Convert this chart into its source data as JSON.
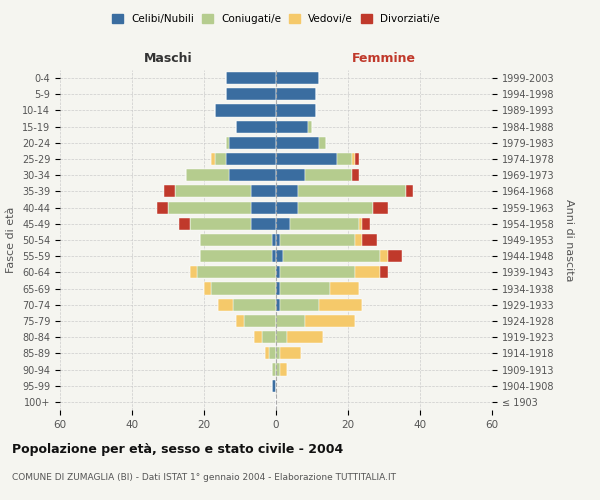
{
  "age_groups": [
    "100+",
    "95-99",
    "90-94",
    "85-89",
    "80-84",
    "75-79",
    "70-74",
    "65-69",
    "60-64",
    "55-59",
    "50-54",
    "45-49",
    "40-44",
    "35-39",
    "30-34",
    "25-29",
    "20-24",
    "15-19",
    "10-14",
    "5-9",
    "0-4"
  ],
  "birth_years": [
    "≤ 1903",
    "1904-1908",
    "1909-1913",
    "1914-1918",
    "1919-1923",
    "1924-1928",
    "1929-1933",
    "1934-1938",
    "1939-1943",
    "1944-1948",
    "1949-1953",
    "1954-1958",
    "1959-1963",
    "1964-1968",
    "1969-1973",
    "1974-1978",
    "1979-1983",
    "1984-1988",
    "1989-1993",
    "1994-1998",
    "1999-2003"
  ],
  "male": {
    "celibi": [
      0,
      1,
      0,
      0,
      0,
      0,
      0,
      0,
      0,
      1,
      1,
      7,
      7,
      7,
      13,
      14,
      13,
      11,
      17,
      14,
      14
    ],
    "coniugati": [
      0,
      0,
      1,
      2,
      4,
      9,
      12,
      18,
      22,
      20,
      20,
      17,
      23,
      21,
      12,
      3,
      1,
      0,
      0,
      0,
      0
    ],
    "vedovi": [
      0,
      0,
      0,
      1,
      2,
      2,
      4,
      2,
      2,
      0,
      0,
      0,
      0,
      0,
      0,
      1,
      0,
      0,
      0,
      0,
      0
    ],
    "divorziati": [
      0,
      0,
      0,
      0,
      0,
      0,
      0,
      0,
      0,
      0,
      0,
      3,
      3,
      3,
      0,
      0,
      0,
      0,
      0,
      0,
      0
    ]
  },
  "female": {
    "nubili": [
      0,
      0,
      0,
      0,
      0,
      0,
      1,
      1,
      1,
      2,
      1,
      4,
      6,
      6,
      8,
      17,
      12,
      9,
      11,
      11,
      12
    ],
    "coniugate": [
      0,
      0,
      1,
      1,
      3,
      8,
      11,
      14,
      21,
      27,
      21,
      19,
      21,
      30,
      13,
      4,
      2,
      1,
      0,
      0,
      0
    ],
    "vedove": [
      0,
      0,
      2,
      6,
      10,
      14,
      12,
      8,
      7,
      2,
      2,
      1,
      0,
      0,
      0,
      1,
      0,
      0,
      0,
      0,
      0
    ],
    "divorziate": [
      0,
      0,
      0,
      0,
      0,
      0,
      0,
      0,
      2,
      4,
      4,
      2,
      4,
      2,
      2,
      1,
      0,
      0,
      0,
      0,
      0
    ]
  },
  "colors": {
    "celibi": "#3a6da0",
    "coniugati": "#b5cc8e",
    "vedovi": "#f5c96a",
    "divorziati": "#c0392b"
  },
  "title": "Popolazione per età, sesso e stato civile - 2004",
  "subtitle": "COMUNE DI ZUMAGLIA (BI) - Dati ISTAT 1° gennaio 2004 - Elaborazione TUTTITALIA.IT",
  "xlabel_left": "Maschi",
  "xlabel_right": "Femmine",
  "ylabel_left": "Fasce di età",
  "ylabel_right": "Anni di nascita",
  "xlim": 60,
  "background_color": "#f5f5f0"
}
